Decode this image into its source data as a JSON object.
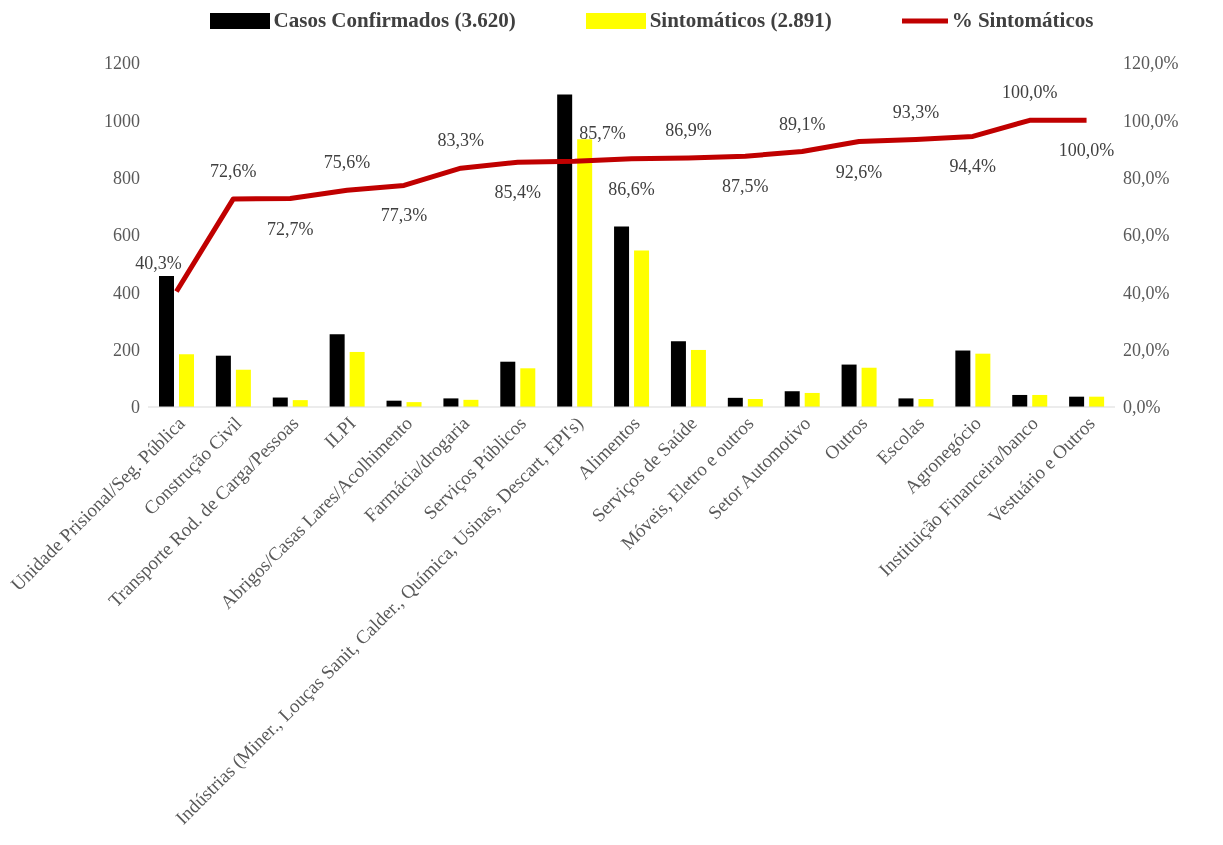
{
  "chart_data": {
    "type": "bar",
    "categories": [
      "Unidade Prisional/Seg. Pública",
      "Construção Civil",
      "Transporte Rod. de Carga/Pessoas",
      "ILPI",
      "Abrigos/Casas Lares/Acolhimento",
      "Farmácia/drogaria",
      "Serviços Públicos",
      "Indústrias (Miner., Louças Sanit, Calder., Química, Usinas, Descart, EPI's)",
      "Alimentos",
      "Serviços de Saúde",
      "Móveis, Eletro e outros",
      "Setor Automotivo",
      "Outros",
      "Escolas",
      "Agronegócio",
      "Instituição Financeira/banco",
      "Vestuário e Outros"
    ],
    "series": [
      {
        "name": "Casos Confirmados (3.620)",
        "color": "#000000",
        "values": [
          457,
          179,
          33,
          254,
          22,
          30,
          158,
          1090,
          630,
          229,
          32,
          55,
          148,
          30,
          197,
          42,
          36
        ]
      },
      {
        "name": "Sintomáticos (2.891)",
        "color": "#ffff00",
        "values": [
          184,
          130,
          24,
          192,
          17,
          25,
          135,
          934,
          546,
          199,
          28,
          49,
          137,
          28,
          186,
          42,
          36
        ]
      },
      {
        "name": "% Sintomáticos",
        "type": "line",
        "axis": "y2",
        "color": "#c00000",
        "marker": "none",
        "values": [
          40.3,
          72.6,
          72.7,
          75.6,
          77.3,
          83.3,
          85.4,
          85.7,
          86.6,
          86.9,
          87.5,
          89.1,
          92.6,
          93.3,
          94.4,
          100,
          100
        ],
        "value_labels": [
          "40,3%",
          "72,6%",
          "72,7%",
          "75,6%",
          "77,3%",
          "83,3%",
          "85,4%",
          "85,7%",
          "86,6%",
          "86,9%",
          "87,5%",
          "89,1%",
          "92,6%",
          "93,3%",
          "94,4%",
          "100,0%",
          "100,0%"
        ]
      }
    ],
    "ylim": [
      0,
      1200
    ],
    "yticks": [
      0,
      200,
      400,
      600,
      800,
      1000,
      1200
    ],
    "y2lim": [
      0,
      120
    ],
    "y2ticks": [
      {
        "value": 0,
        "label": "0,0%"
      },
      {
        "value": 20,
        "label": "20,0%"
      },
      {
        "value": 40,
        "label": "40,0%"
      },
      {
        "value": 60,
        "label": "60,0%"
      },
      {
        "value": 80,
        "label": "80,0%"
      },
      {
        "value": 100,
        "label": "100,0%"
      },
      {
        "value": 120,
        "label": "120,0%"
      }
    ],
    "grid": false,
    "legend": "top"
  }
}
